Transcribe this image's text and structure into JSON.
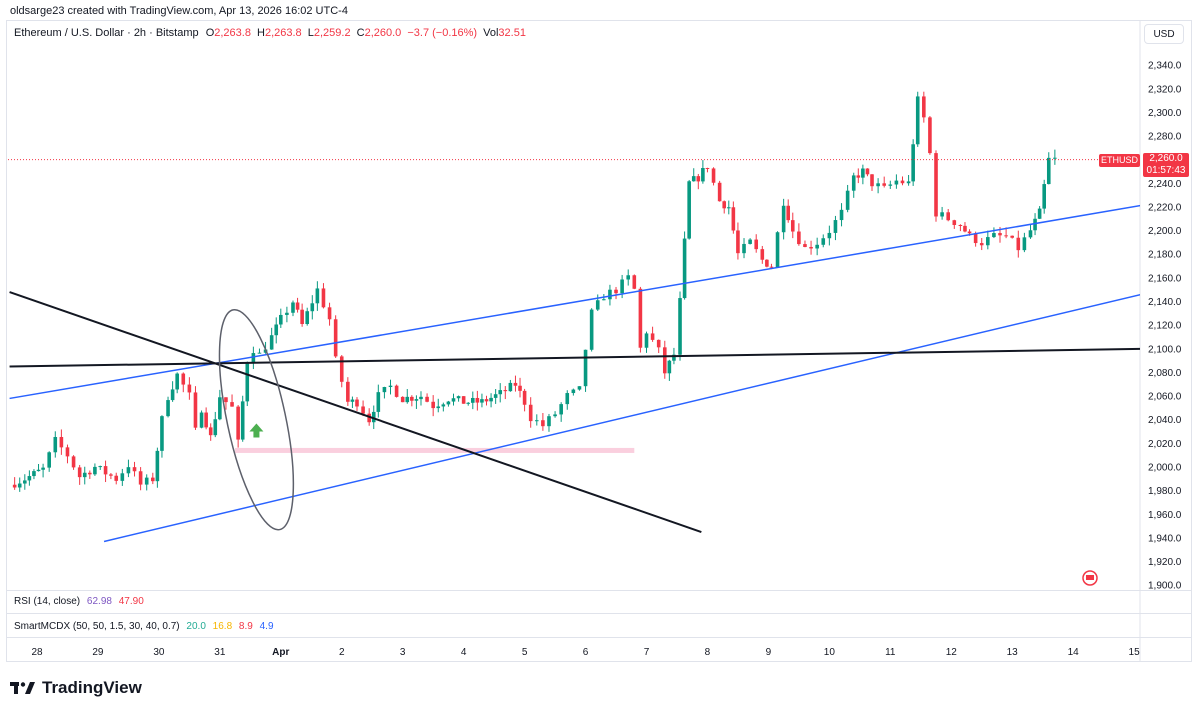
{
  "header": {
    "credit": "oldsarge23 created with TradingView.com, Apr 13, 2026 16:02 UTC-4"
  },
  "legend": {
    "symbol": "Ethereum / U.S. Dollar · 2h · Bitstamp",
    "open_label": "O",
    "open": "2,263.8",
    "high_label": "H",
    "high": "2,263.8",
    "low_label": "L",
    "low": "2,259.2",
    "close_label": "C",
    "close": "2,260.0",
    "change": "−3.7 (−0.16%)",
    "vol_label": "Vol",
    "vol": "32.51"
  },
  "currency_button": "USD",
  "last_price": {
    "symbol": "ETHUSD",
    "price": "2,260.0",
    "countdown": "01:57:43",
    "color": "#f23645"
  },
  "indicators": {
    "rsi": {
      "label": "RSI (14, close)",
      "values": [
        "62.98",
        "47.90"
      ],
      "colors": [
        "#7e57c2",
        "#f23645"
      ]
    },
    "smc": {
      "label": "SmartMCDX (50, 50, 1.5, 30, 40, 0.7)",
      "values": [
        "20.0",
        "16.8",
        "8.9",
        "4.9"
      ],
      "colors": [
        "#22ab94",
        "#f7b500",
        "#f23645",
        "#2962ff"
      ]
    }
  },
  "brand": {
    "name": "TradingView",
    "logo": "tradingview-logo-icon"
  },
  "chart_data": {
    "type": "candlestick",
    "title": "Ethereum / U.S. Dollar · 2h · Bitstamp",
    "xlabel": "",
    "ylabel": "",
    "ylim": [
      1900,
      2340
    ],
    "y_ticks": [
      1900,
      1920,
      1940,
      1960,
      1980,
      2000,
      2020,
      2040,
      2060,
      2080,
      2100,
      2120,
      2140,
      2160,
      2180,
      2200,
      2220,
      2240,
      2260,
      2280,
      2300,
      2320,
      2340
    ],
    "x_ticks": [
      {
        "label": "28",
        "day": 28
      },
      {
        "label": "29",
        "day": 29
      },
      {
        "label": "30",
        "day": 30
      },
      {
        "label": "31",
        "day": 31
      },
      {
        "label": "Apr",
        "day": 32
      },
      {
        "label": "2",
        "day": 33
      },
      {
        "label": "3",
        "day": 34
      },
      {
        "label": "4",
        "day": 35
      },
      {
        "label": "5",
        "day": 36
      },
      {
        "label": "6",
        "day": 37
      },
      {
        "label": "7",
        "day": 38
      },
      {
        "label": "8",
        "day": 39
      },
      {
        "label": "9",
        "day": 40
      },
      {
        "label": "10",
        "day": 41
      },
      {
        "label": "11",
        "day": 42
      },
      {
        "label": "12",
        "day": 43
      },
      {
        "label": "13",
        "day": 44
      },
      {
        "label": "14",
        "day": 45
      },
      {
        "label": "15",
        "day": 46
      }
    ],
    "x_domain": [
      27.55,
      46.3
    ],
    "up_color": "#089981",
    "down_color": "#f23645",
    "key_closes": [
      [
        27.55,
        1985
      ],
      [
        27.8,
        1990
      ],
      [
        28.1,
        1998
      ],
      [
        28.3,
        2022
      ],
      [
        28.5,
        2010
      ],
      [
        28.7,
        1992
      ],
      [
        28.95,
        2000
      ],
      [
        29.3,
        1990
      ],
      [
        29.5,
        2002
      ],
      [
        29.7,
        1985
      ],
      [
        29.9,
        1990
      ],
      [
        30.05,
        2040
      ],
      [
        30.15,
        2060
      ],
      [
        30.3,
        2078
      ],
      [
        30.5,
        2060
      ],
      [
        30.6,
        2030
      ],
      [
        30.7,
        2050
      ],
      [
        30.85,
        2025
      ],
      [
        31.0,
        2060
      ],
      [
        31.2,
        2050
      ],
      [
        31.3,
        2020
      ],
      [
        31.45,
        2090
      ],
      [
        31.55,
        2100
      ],
      [
        31.65,
        2095
      ],
      [
        31.85,
        2110
      ],
      [
        32.0,
        2125
      ],
      [
        32.2,
        2140
      ],
      [
        32.35,
        2120
      ],
      [
        32.6,
        2150
      ],
      [
        32.8,
        2125
      ],
      [
        32.9,
        2090
      ],
      [
        33.1,
        2055
      ],
      [
        33.25,
        2055
      ],
      [
        33.45,
        2040
      ],
      [
        33.6,
        2060
      ],
      [
        33.8,
        2068
      ],
      [
        34.0,
        2058
      ],
      [
        34.3,
        2060
      ],
      [
        34.5,
        2052
      ],
      [
        34.75,
        2058
      ],
      [
        35.0,
        2055
      ],
      [
        35.3,
        2055
      ],
      [
        35.6,
        2062
      ],
      [
        35.85,
        2070
      ],
      [
        36.0,
        2055
      ],
      [
        36.1,
        2042
      ],
      [
        36.3,
        2035
      ],
      [
        36.5,
        2045
      ],
      [
        36.7,
        2060
      ],
      [
        36.9,
        2065
      ],
      [
        37.0,
        2100
      ],
      [
        37.1,
        2130
      ],
      [
        37.3,
        2145
      ],
      [
        37.5,
        2150
      ],
      [
        37.7,
        2160
      ],
      [
        37.8,
        2150
      ],
      [
        37.9,
        2100
      ],
      [
        38.0,
        2115
      ],
      [
        38.2,
        2098
      ],
      [
        38.3,
        2080
      ],
      [
        38.45,
        2095
      ],
      [
        38.55,
        2140
      ],
      [
        38.7,
        2240
      ],
      [
        38.85,
        2245
      ],
      [
        39.0,
        2255
      ],
      [
        39.1,
        2240
      ],
      [
        39.2,
        2225
      ],
      [
        39.35,
        2220
      ],
      [
        39.5,
        2180
      ],
      [
        39.7,
        2190
      ],
      [
        39.9,
        2175
      ],
      [
        40.05,
        2170
      ],
      [
        40.25,
        2225
      ],
      [
        40.4,
        2200
      ],
      [
        40.6,
        2185
      ],
      [
        40.8,
        2190
      ],
      [
        41.0,
        2200
      ],
      [
        41.2,
        2215
      ],
      [
        41.4,
        2245
      ],
      [
        41.55,
        2250
      ],
      [
        41.7,
        2240
      ],
      [
        41.9,
        2235
      ],
      [
        42.1,
        2242
      ],
      [
        42.3,
        2240
      ],
      [
        42.45,
        2310
      ],
      [
        42.55,
        2295
      ],
      [
        42.65,
        2265
      ],
      [
        42.75,
        2215
      ],
      [
        42.95,
        2210
      ],
      [
        43.15,
        2205
      ],
      [
        43.3,
        2195
      ],
      [
        43.5,
        2190
      ],
      [
        43.7,
        2195
      ],
      [
        43.9,
        2195
      ],
      [
        44.1,
        2185
      ],
      [
        44.3,
        2200
      ],
      [
        44.45,
        2215
      ],
      [
        44.6,
        2260
      ],
      [
        44.7,
        2260
      ]
    ],
    "annotations": [
      {
        "type": "trendline",
        "color": "#2962ff",
        "points": [
          [
            27.55,
            2058
          ],
          [
            46.2,
            2222
          ]
        ]
      },
      {
        "type": "trendline",
        "color": "#2962ff",
        "points": [
          [
            29.1,
            1937
          ],
          [
            46.2,
            2147
          ]
        ]
      },
      {
        "type": "trendline",
        "color": "#131722",
        "points": [
          [
            27.55,
            2085
          ],
          [
            46.2,
            2100
          ]
        ]
      },
      {
        "type": "trendline",
        "color": "#131722",
        "points": [
          [
            27.55,
            2148
          ],
          [
            38.9,
            1945
          ]
        ]
      },
      {
        "type": "zone",
        "color": "#f8bbd0",
        "from": [
          31.25,
          2014
        ],
        "to": [
          37.8,
          2014
        ]
      },
      {
        "type": "ellipse",
        "color": "#5d606b",
        "center": [
          31.6,
          2040
        ],
        "radius_days": 0.48,
        "radius_price": 95,
        "rotation": -12
      },
      {
        "type": "arrow",
        "color": "#4caf50",
        "direction": "up",
        "at": [
          31.6,
          2030
        ]
      },
      {
        "type": "price_line",
        "color": "#f23645",
        "value": 2260
      }
    ]
  }
}
